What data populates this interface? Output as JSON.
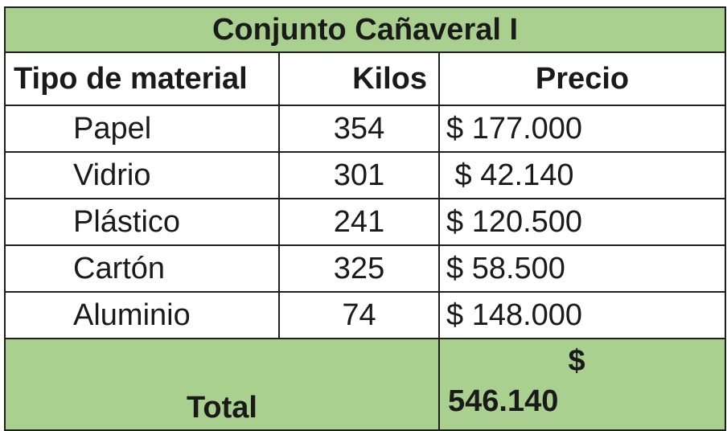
{
  "table": {
    "title": "Conjunto Cañaveral I",
    "headers": {
      "material": "Tipo de material",
      "kilos": "Kilos",
      "precio": "Precio"
    },
    "rows": [
      {
        "material": "Papel",
        "kilos": "354",
        "precio": "$ 177.000"
      },
      {
        "material": "Vidrio",
        "kilos": "301",
        "precio": " $ 42.140"
      },
      {
        "material": "Plástico",
        "kilos": "241",
        "precio": "$ 120.500"
      },
      {
        "material": "Cartón",
        "kilos": "325",
        "precio": "$ 58.500"
      },
      {
        "material": "Aluminio",
        "kilos": "74",
        "precio": "$ 148.000"
      }
    ],
    "total": {
      "label": "Total",
      "currency": "$",
      "amount": "546.140"
    },
    "colors": {
      "highlight_fill": "#a9d08e",
      "border": "#1f1f1f"
    }
  }
}
